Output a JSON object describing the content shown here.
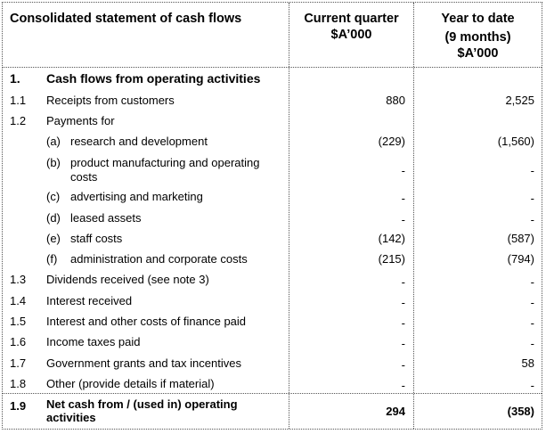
{
  "header": {
    "title": "Consolidated statement of cash flows",
    "col1_line1": "Current quarter",
    "col1_line2": "$A’000",
    "col2_line1": "Year to date",
    "col2_line2": "(9 months)",
    "col2_line3": "$A’000"
  },
  "section": {
    "number": "1.",
    "title": "Cash flows from operating activities"
  },
  "rows": [
    {
      "num": "1.1",
      "label": "Receipts from customers",
      "cq": "880",
      "ytd": "2,525"
    },
    {
      "num": "1.2",
      "label": "Payments for",
      "cq": "",
      "ytd": ""
    },
    {
      "sub": "(a)",
      "label": "research and development",
      "cq": "(229)",
      "ytd": "(1,560)"
    },
    {
      "sub": "(b)",
      "label": "product manufacturing and operating",
      "label2": "costs",
      "cq": "-",
      "ytd": "-"
    },
    {
      "sub": "(c)",
      "label": "advertising and marketing",
      "cq": "-",
      "ytd": "-"
    },
    {
      "sub": "(d)",
      "label": "leased assets",
      "cq": "-",
      "ytd": "-"
    },
    {
      "sub": "(e)",
      "label": "staff costs",
      "cq": "(142)",
      "ytd": "(587)"
    },
    {
      "sub": "(f)",
      "label": "administration and corporate costs",
      "cq": "(215)",
      "ytd": "(794)"
    },
    {
      "num": "1.3",
      "label": "Dividends received (see note 3)",
      "cq": "-",
      "ytd": "-"
    },
    {
      "num": "1.4",
      "label": "Interest received",
      "cq": "-",
      "ytd": "-"
    },
    {
      "num": "1.5",
      "label": "Interest and other costs of finance paid",
      "cq": "-",
      "ytd": "-"
    },
    {
      "num": "1.6",
      "label": "Income taxes paid",
      "cq": "-",
      "ytd": "-"
    },
    {
      "num": "1.7",
      "label": "Government grants and tax incentives",
      "cq": "-",
      "ytd": "58"
    },
    {
      "num": "1.8",
      "label": "Other (provide details if material)",
      "cq": "-",
      "ytd": "-"
    }
  ],
  "total": {
    "num": "1.9",
    "label": "Net cash from / (used in) operating",
    "label2": "activities",
    "cq": "294",
    "ytd": "(358)"
  }
}
